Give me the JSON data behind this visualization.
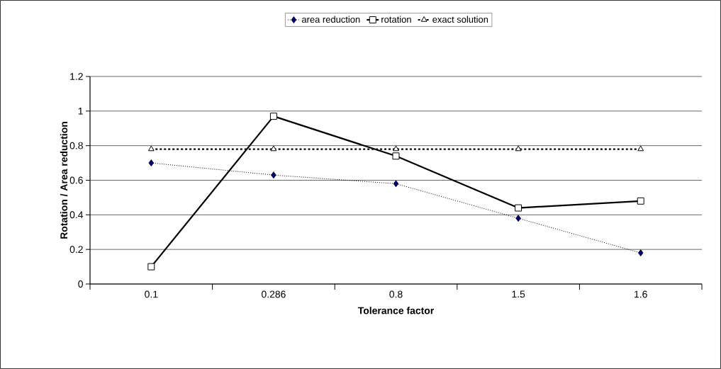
{
  "chart_data": {
    "type": "line",
    "xlabel": "Tolerance factor",
    "ylabel": "Rotation / Area reduction",
    "categories": [
      "0.1",
      "0.286",
      "0.8",
      "1.5",
      "1.6"
    ],
    "series": [
      {
        "name": "area reduction",
        "color": "#000080",
        "marker": "diamond",
        "line_style": "dotted",
        "values": [
          0.7,
          0.63,
          0.58,
          0.38,
          0.18
        ]
      },
      {
        "name": "rotation",
        "color": "#000000",
        "marker": "square",
        "line_style": "solid",
        "values": [
          0.1,
          0.97,
          0.74,
          0.44,
          0.48
        ]
      },
      {
        "name": "exact solution",
        "color": "#000000",
        "marker": "triangle",
        "line_style": "dashed",
        "values": [
          0.78,
          0.78,
          0.78,
          0.78,
          0.78
        ]
      }
    ],
    "ylim": [
      0,
      1.2
    ],
    "yticks": [
      0,
      0.2,
      0.4,
      0.6,
      0.8,
      1,
      1.2
    ],
    "grid": "y",
    "legend": "top"
  }
}
